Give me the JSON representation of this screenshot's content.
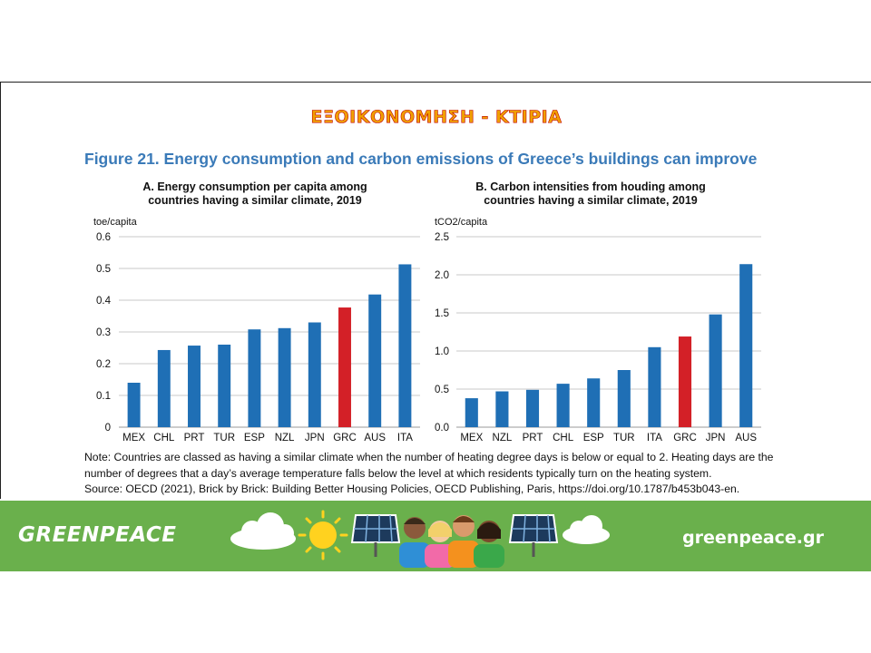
{
  "slide": {
    "title": "ΕΞΟΙΚΟΝΟΜΗΣΗ - ΚΤΙΡΙΑ"
  },
  "figure": {
    "title": "Figure 21. Energy consumption and carbon emissions of Greece’s buildings can improve",
    "note_line1": "Note: Countries are classed as having a similar climate when the number of heating degree days is below or equal to 2. Heating days are the",
    "note_line2": "number of degrees that a day’s average temperature falls below the level at which residents typically turn on the heating system.",
    "source": "Source: OECD (2021), Brick by Brick: Building Better Housing Policies, OECD Publishing, Paris, https://doi.org/10.1787/b453b043-en."
  },
  "colors": {
    "bar": "#1f6fb5",
    "highlight": "#d32027",
    "grid": "#c8c8c8",
    "footer": "#6ab04c"
  },
  "chart_data": [
    {
      "type": "bar",
      "title_line1": "A. Energy consumption per capita among",
      "title_line2": "countries having a similar climate, 2019",
      "ylabel": "toe/capita",
      "ylim": [
        0,
        0.6
      ],
      "yticks": [
        0,
        0.1,
        0.2,
        0.3,
        0.4,
        0.5,
        0.6
      ],
      "ytick_labels": [
        "0",
        "0.1",
        "0.2",
        "0.3",
        "0.4",
        "0.5",
        "0.6"
      ],
      "grid": true,
      "categories": [
        "MEX",
        "CHL",
        "PRT",
        "TUR",
        "ESP",
        "NZL",
        "JPN",
        "GRC",
        "AUS",
        "ITA"
      ],
      "values": [
        0.14,
        0.243,
        0.257,
        0.26,
        0.308,
        0.312,
        0.33,
        0.377,
        0.418,
        0.513
      ],
      "highlight": "GRC"
    },
    {
      "type": "bar",
      "title_line1": "B. Carbon intensities from houding among",
      "title_line2": "countries having a similar climate, 2019",
      "ylabel": "tCO2/capita",
      "ylim": [
        0,
        2.5
      ],
      "yticks": [
        0,
        0.5,
        1.0,
        1.5,
        2.0,
        2.5
      ],
      "ytick_labels": [
        "0.0",
        "0.5",
        "1.0",
        "1.5",
        "2.0",
        "2.5"
      ],
      "grid": true,
      "categories": [
        "MEX",
        "NZL",
        "PRT",
        "CHL",
        "ESP",
        "TUR",
        "ITA",
        "GRC",
        "JPN",
        "AUS"
      ],
      "values": [
        0.38,
        0.47,
        0.49,
        0.57,
        0.64,
        0.75,
        1.05,
        1.19,
        1.48,
        2.14
      ],
      "highlight": "GRC"
    }
  ],
  "footer": {
    "logo": "GREENPEACE",
    "url": "greenpeace.gr"
  }
}
